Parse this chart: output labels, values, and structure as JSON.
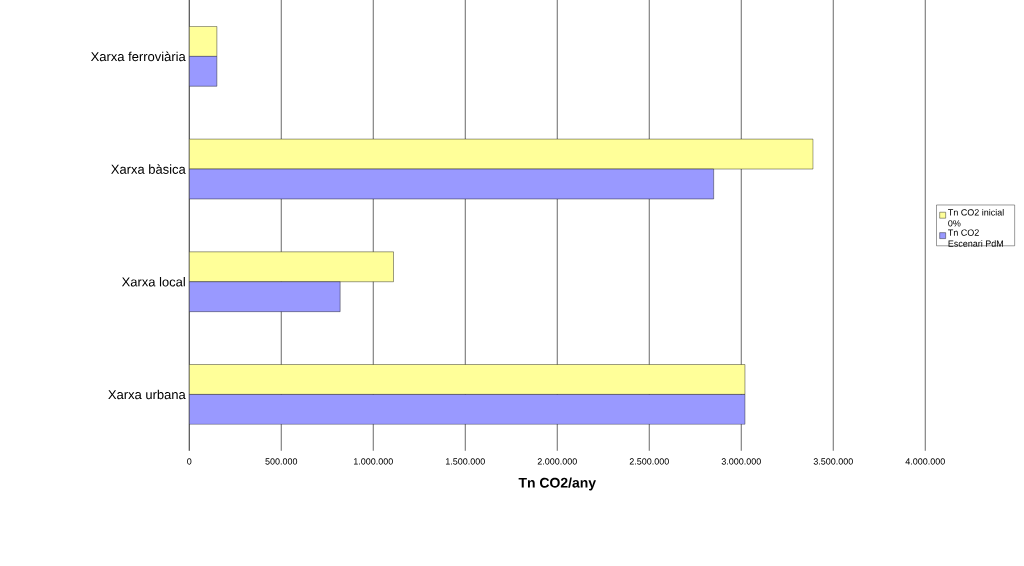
{
  "chart_data": {
    "type": "bar",
    "orientation": "horizontal",
    "xlabel": "Tn CO2/any",
    "categories": [
      "Xarxa ferroviària",
      "Xarxa bàsica",
      "Xarxa local",
      "Xarxa urbana"
    ],
    "series": [
      {
        "name": "Tn CO2 inicial 0%",
        "color": "#ffff99",
        "values": [
          150000,
          3390000,
          1110000,
          3020000
        ]
      },
      {
        "name": "Tn CO2 Escenari PdM",
        "color": "#9999ff",
        "values": [
          150000,
          2850000,
          820000,
          3020000
        ]
      }
    ],
    "xlim": [
      0,
      4000000
    ],
    "xticks": [
      0,
      {
        "value": 500000,
        "label": "500.000"
      },
      {
        "value": 1000000,
        "label": "1.000.000"
      },
      {
        "value": 1500000,
        "label": "1.500.000"
      },
      {
        "value": 2000000,
        "label": "2.000.000"
      },
      {
        "value": 2500000,
        "label": "2.500.000"
      },
      {
        "value": 3000000,
        "label": "3.000.000"
      },
      {
        "value": 3500000,
        "label": "3.500.000"
      },
      {
        "value": 4000000,
        "label": "4.000.000"
      }
    ],
    "grid": "x",
    "legend": "right"
  }
}
